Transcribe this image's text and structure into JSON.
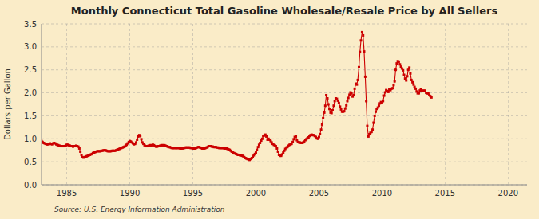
{
  "chart_data": {
    "type": "line",
    "title": "Monthly Connecticut Total Gasoline Wholesale/Resale Price by All Sellers",
    "ylabel": "Dollars per Gallon",
    "source": "Source: U.S. Energy Information Administration",
    "color": "#cc0000",
    "marker": "square",
    "line_style": "solid",
    "grid": true,
    "xlim": [
      1983.0,
      2021.5
    ],
    "ylim": [
      0.0,
      3.5
    ],
    "xticks": [
      1985,
      1990,
      1995,
      2000,
      2005,
      2010,
      2015,
      2020
    ],
    "yticks": [
      {
        "value": 0.0,
        "label": "0.0"
      },
      0.5,
      {
        "value": 1.0,
        "label": "1.0"
      },
      1.5,
      {
        "value": 2.0,
        "label": "2.0"
      },
      2.5,
      {
        "value": 3.0,
        "label": "3.0"
      },
      3.5
    ],
    "x": [
      1983.0,
      1983.08,
      1983.17,
      1983.25,
      1983.33,
      1983.42,
      1983.5,
      1983.58,
      1983.67,
      1983.75,
      1983.83,
      1983.92,
      1984.0,
      1984.08,
      1984.17,
      1984.25,
      1984.33,
      1984.42,
      1984.5,
      1984.58,
      1984.67,
      1984.75,
      1984.83,
      1984.92,
      1985.0,
      1985.08,
      1985.17,
      1985.25,
      1985.33,
      1985.42,
      1985.5,
      1985.58,
      1985.67,
      1985.75,
      1985.83,
      1985.92,
      1986.0,
      1986.08,
      1986.17,
      1986.25,
      1986.33,
      1986.42,
      1986.5,
      1986.58,
      1986.67,
      1986.75,
      1986.83,
      1986.92,
      1987.0,
      1987.08,
      1987.17,
      1987.25,
      1987.33,
      1987.42,
      1987.5,
      1987.58,
      1987.67,
      1987.75,
      1987.83,
      1987.92,
      1988.0,
      1988.08,
      1988.17,
      1988.25,
      1988.33,
      1988.42,
      1988.5,
      1988.58,
      1988.67,
      1988.75,
      1988.83,
      1988.92,
      1989.0,
      1989.08,
      1989.17,
      1989.25,
      1989.33,
      1989.42,
      1989.5,
      1989.58,
      1989.67,
      1989.75,
      1989.83,
      1989.92,
      1990.0,
      1990.08,
      1990.17,
      1990.25,
      1990.33,
      1990.42,
      1990.5,
      1990.58,
      1990.67,
      1990.75,
      1990.83,
      1990.92,
      1991.0,
      1991.08,
      1991.17,
      1991.25,
      1991.33,
      1991.42,
      1991.5,
      1991.58,
      1991.67,
      1991.75,
      1991.83,
      1991.92,
      1992.0,
      1992.08,
      1992.17,
      1992.25,
      1992.33,
      1992.42,
      1992.5,
      1992.58,
      1992.67,
      1992.75,
      1992.83,
      1992.92,
      1993.0,
      1993.08,
      1993.17,
      1993.25,
      1993.33,
      1993.42,
      1993.5,
      1993.58,
      1993.67,
      1993.75,
      1993.83,
      1993.92,
      1994.0,
      1994.08,
      1994.17,
      1994.25,
      1994.33,
      1994.42,
      1994.5,
      1994.58,
      1994.67,
      1994.75,
      1994.83,
      1994.92,
      1995.0,
      1995.08,
      1995.17,
      1995.25,
      1995.33,
      1995.42,
      1995.5,
      1995.58,
      1995.67,
      1995.75,
      1995.83,
      1995.92,
      1996.0,
      1996.08,
      1996.17,
      1996.25,
      1996.33,
      1996.42,
      1996.5,
      1996.58,
      1996.67,
      1996.75,
      1996.83,
      1996.92,
      1997.0,
      1997.08,
      1997.17,
      1997.25,
      1997.33,
      1997.42,
      1997.5,
      1997.58,
      1997.67,
      1997.75,
      1997.83,
      1997.92,
      1998.0,
      1998.08,
      1998.17,
      1998.25,
      1998.33,
      1998.42,
      1998.5,
      1998.58,
      1998.67,
      1998.75,
      1998.83,
      1998.92,
      1999.0,
      1999.08,
      1999.17,
      1999.25,
      1999.33,
      1999.42,
      1999.5,
      1999.58,
      1999.67,
      1999.75,
      1999.83,
      1999.92,
      2000.0,
      2000.08,
      2000.17,
      2000.25,
      2000.33,
      2000.42,
      2000.5,
      2000.58,
      2000.67,
      2000.75,
      2000.83,
      2000.92,
      2001.0,
      2001.08,
      2001.17,
      2001.25,
      2001.33,
      2001.42,
      2001.5,
      2001.58,
      2001.67,
      2001.75,
      2001.83,
      2001.92,
      2002.0,
      2002.08,
      2002.17,
      2002.25,
      2002.33,
      2002.42,
      2002.5,
      2002.58,
      2002.67,
      2002.75,
      2002.83,
      2002.92,
      2003.0,
      2003.08,
      2003.17,
      2003.25,
      2003.33,
      2003.42,
      2003.5,
      2003.58,
      2003.67,
      2003.75,
      2003.83,
      2003.92,
      2004.0,
      2004.08,
      2004.17,
      2004.25,
      2004.33,
      2004.42,
      2004.5,
      2004.58,
      2004.67,
      2004.75,
      2004.83,
      2004.92,
      2005.0,
      2005.08,
      2005.17,
      2005.25,
      2005.33,
      2005.42,
      2005.5,
      2005.58,
      2005.67,
      2005.75,
      2005.83,
      2005.92,
      2006.0,
      2006.08,
      2006.17,
      2006.25,
      2006.33,
      2006.42,
      2006.5,
      2006.58,
      2006.67,
      2006.75,
      2006.83,
      2006.92,
      2007.0,
      2007.08,
      2007.17,
      2007.25,
      2007.33,
      2007.42,
      2007.5,
      2007.58,
      2007.67,
      2007.75,
      2007.83,
      2007.92,
      2008.0,
      2008.08,
      2008.17,
      2008.25,
      2008.33,
      2008.42,
      2008.5,
      2008.58,
      2008.67,
      2008.75,
      2008.83,
      2008.92,
      2009.0,
      2009.08,
      2009.17,
      2009.25,
      2009.33,
      2009.42,
      2009.5,
      2009.58,
      2009.67,
      2009.75,
      2009.83,
      2009.92,
      2010.0,
      2010.08,
      2010.17,
      2010.25,
      2010.33,
      2010.42,
      2010.5,
      2010.58,
      2010.67,
      2010.75,
      2010.83,
      2010.92,
      2011.0,
      2011.08,
      2011.17,
      2011.25,
      2011.33,
      2011.42,
      2011.5,
      2011.58,
      2011.67,
      2011.75,
      2011.83,
      2011.92,
      2012.0,
      2012.08,
      2012.17,
      2012.25,
      2012.33,
      2012.42,
      2012.5,
      2012.58,
      2012.67,
      2012.75,
      2012.83,
      2012.92,
      2013.0,
      2013.08,
      2013.17,
      2013.25,
      2013.33,
      2013.42,
      2013.5,
      2013.58,
      2013.67,
      2013.75,
      2013.83,
      2013.92
    ],
    "values": [
      0.95,
      0.93,
      0.91,
      0.9,
      0.89,
      0.88,
      0.88,
      0.89,
      0.9,
      0.89,
      0.88,
      0.9,
      0.91,
      0.9,
      0.88,
      0.87,
      0.86,
      0.85,
      0.84,
      0.84,
      0.84,
      0.84,
      0.84,
      0.85,
      0.87,
      0.87,
      0.86,
      0.85,
      0.84,
      0.84,
      0.83,
      0.84,
      0.84,
      0.85,
      0.84,
      0.83,
      0.79,
      0.72,
      0.65,
      0.6,
      0.59,
      0.6,
      0.61,
      0.62,
      0.63,
      0.64,
      0.65,
      0.66,
      0.67,
      0.69,
      0.7,
      0.71,
      0.72,
      0.73,
      0.73,
      0.73,
      0.73,
      0.74,
      0.74,
      0.75,
      0.75,
      0.75,
      0.74,
      0.73,
      0.73,
      0.73,
      0.73,
      0.74,
      0.74,
      0.74,
      0.74,
      0.75,
      0.76,
      0.77,
      0.78,
      0.79,
      0.8,
      0.81,
      0.82,
      0.83,
      0.85,
      0.87,
      0.9,
      0.93,
      0.95,
      0.94,
      0.92,
      0.9,
      0.88,
      0.89,
      0.92,
      0.98,
      1.05,
      1.08,
      1.06,
      0.99,
      0.92,
      0.89,
      0.86,
      0.84,
      0.84,
      0.84,
      0.85,
      0.86,
      0.86,
      0.86,
      0.87,
      0.86,
      0.84,
      0.83,
      0.83,
      0.84,
      0.84,
      0.85,
      0.86,
      0.86,
      0.86,
      0.86,
      0.85,
      0.84,
      0.83,
      0.82,
      0.82,
      0.81,
      0.8,
      0.8,
      0.8,
      0.8,
      0.8,
      0.8,
      0.8,
      0.8,
      0.79,
      0.79,
      0.79,
      0.8,
      0.8,
      0.81,
      0.81,
      0.81,
      0.81,
      0.81,
      0.8,
      0.8,
      0.79,
      0.79,
      0.79,
      0.8,
      0.81,
      0.82,
      0.82,
      0.81,
      0.8,
      0.79,
      0.79,
      0.79,
      0.8,
      0.81,
      0.82,
      0.84,
      0.84,
      0.84,
      0.83,
      0.83,
      0.82,
      0.82,
      0.82,
      0.81,
      0.81,
      0.8,
      0.8,
      0.8,
      0.8,
      0.8,
      0.79,
      0.79,
      0.79,
      0.78,
      0.77,
      0.76,
      0.74,
      0.72,
      0.7,
      0.69,
      0.68,
      0.67,
      0.66,
      0.65,
      0.65,
      0.64,
      0.64,
      0.63,
      0.62,
      0.6,
      0.58,
      0.57,
      0.56,
      0.55,
      0.54,
      0.56,
      0.58,
      0.61,
      0.64,
      0.67,
      0.7,
      0.76,
      0.82,
      0.87,
      0.91,
      0.96,
      1.0,
      1.06,
      1.07,
      1.09,
      1.05,
      0.98,
      1.0,
      0.98,
      0.95,
      0.92,
      0.89,
      0.87,
      0.86,
      0.84,
      0.79,
      0.72,
      0.65,
      0.63,
      0.63,
      0.66,
      0.7,
      0.74,
      0.78,
      0.81,
      0.82,
      0.85,
      0.87,
      0.88,
      0.89,
      0.93,
      0.99,
      1.04,
      1.05,
      0.97,
      0.93,
      0.92,
      0.92,
      0.91,
      0.91,
      0.92,
      0.94,
      0.97,
      0.99,
      1.01,
      1.03,
      1.06,
      1.08,
      1.09,
      1.08,
      1.08,
      1.06,
      1.04,
      1.01,
      1.0,
      1.04,
      1.1,
      1.2,
      1.31,
      1.45,
      1.57,
      1.72,
      1.95,
      1.88,
      1.75,
      1.65,
      1.57,
      1.56,
      1.62,
      1.72,
      1.82,
      1.88,
      1.87,
      1.83,
      1.78,
      1.7,
      1.64,
      1.59,
      1.59,
      1.6,
      1.66,
      1.73,
      1.82,
      1.89,
      1.96,
      2.01,
      2.0,
      1.92,
      1.95,
      2.09,
      2.2,
      2.18,
      2.28,
      2.56,
      2.89,
      3.14,
      3.32,
      3.25,
      2.9,
      2.35,
      1.82,
      1.28,
      1.05,
      1.1,
      1.13,
      1.15,
      1.2,
      1.35,
      1.5,
      1.59,
      1.65,
      1.68,
      1.72,
      1.77,
      1.8,
      1.78,
      1.82,
      1.94,
      2.01,
      2.06,
      2.04,
      2.02,
      2.07,
      2.06,
      2.09,
      2.1,
      2.17,
      2.25,
      2.5,
      2.64,
      2.69,
      2.68,
      2.62,
      2.57,
      2.53,
      2.49,
      2.39,
      2.31,
      2.27,
      2.36,
      2.5,
      2.55,
      2.42,
      2.28,
      2.23,
      2.18,
      2.13,
      2.09,
      2.03,
      1.99,
      1.99,
      2.05,
      2.08,
      2.04,
      2.05,
      2.04,
      2.05,
      2.0,
      1.99,
      1.99,
      1.95,
      1.93,
      1.9
    ]
  }
}
